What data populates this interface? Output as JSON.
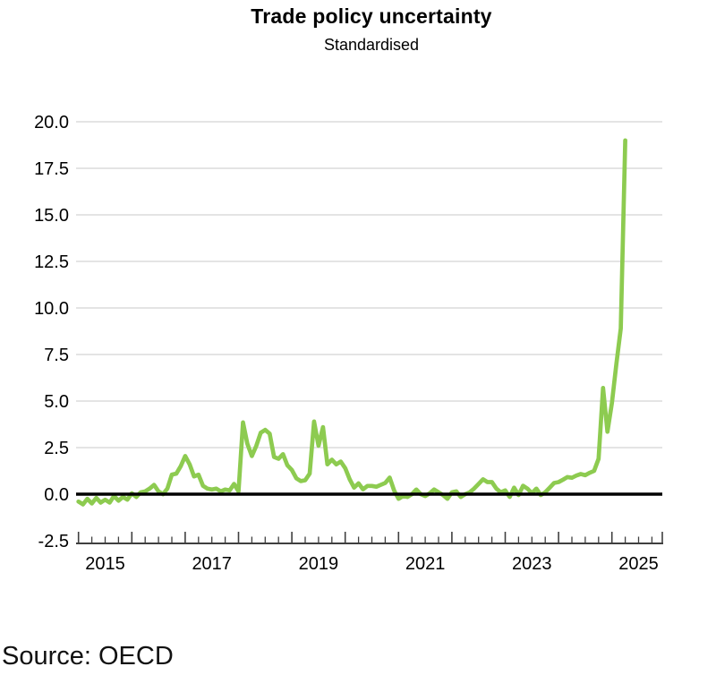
{
  "title": "Trade policy uncertainty",
  "subtitle": "Standardised",
  "source": "Source: OECD",
  "colors": {
    "line": "#8DCB50",
    "zero_line": "#000000",
    "grid": "#DBDBDB",
    "axis": "#3F3F3F",
    "text": "#000000"
  },
  "chart_data": {
    "type": "line",
    "title": "Trade policy uncertainty",
    "subtitle": "Standardised",
    "xlabel": "",
    "ylabel": "",
    "ylim": [
      -2.5,
      21
    ],
    "grid": "horizontal-light-gray",
    "zero_line": true,
    "legend": "none",
    "y_ticks": [
      20.0,
      17.5,
      15.0,
      12.5,
      10.0,
      7.5,
      5.0,
      2.5,
      0.0,
      -2.5
    ],
    "y_tick_labels": [
      "20.0",
      "17.5",
      "15.0",
      "12.5",
      "10.0",
      "7.5",
      "5.0",
      "2.5",
      "0.0",
      "-2.5"
    ],
    "x_tick_years": [
      2015,
      2017,
      2019,
      2021,
      2023,
      2025
    ],
    "x_tick_labels": [
      "2015",
      "2017",
      "2019",
      "2021",
      "2023",
      "2025"
    ],
    "x_range": {
      "start": "2015-01",
      "end": "2025-04",
      "frequency": "monthly"
    },
    "series": [
      {
        "name": "Trade policy uncertainty (standardised)",
        "start": "2015-01",
        "values": [
          -0.4,
          -0.55,
          -0.25,
          -0.5,
          -0.2,
          -0.45,
          -0.3,
          -0.45,
          -0.1,
          -0.35,
          -0.15,
          -0.3,
          0.05,
          -0.15,
          0.1,
          0.15,
          0.3,
          0.5,
          0.15,
          0.0,
          0.3,
          1.05,
          1.1,
          1.5,
          2.05,
          1.6,
          0.95,
          1.05,
          0.45,
          0.3,
          0.25,
          0.3,
          0.15,
          0.25,
          0.2,
          0.55,
          0.15,
          3.85,
          2.7,
          2.05,
          2.6,
          3.3,
          3.45,
          3.25,
          2.0,
          1.9,
          2.15,
          1.55,
          1.3,
          0.85,
          0.7,
          0.75,
          1.1,
          3.9,
          2.6,
          3.6,
          1.6,
          1.85,
          1.6,
          1.75,
          1.4,
          0.8,
          0.35,
          0.58,
          0.26,
          0.44,
          0.44,
          0.4,
          0.5,
          0.6,
          0.89,
          0.2,
          -0.25,
          -0.1,
          -0.15,
          0.0,
          0.25,
          0.0,
          -0.1,
          0.05,
          0.25,
          0.1,
          -0.05,
          -0.25,
          0.1,
          0.15,
          -0.15,
          0.0,
          0.1,
          0.3,
          0.55,
          0.8,
          0.65,
          0.65,
          0.3,
          0.1,
          0.2,
          -0.15,
          0.35,
          -0.05,
          0.45,
          0.3,
          0.05,
          0.3,
          -0.05,
          0.1,
          0.35,
          0.6,
          0.65,
          0.78,
          0.92,
          0.88,
          1.0,
          1.08,
          1.02,
          1.15,
          1.25,
          1.9,
          5.7,
          3.35,
          4.9,
          7.0,
          8.9,
          19.0
        ]
      }
    ]
  }
}
